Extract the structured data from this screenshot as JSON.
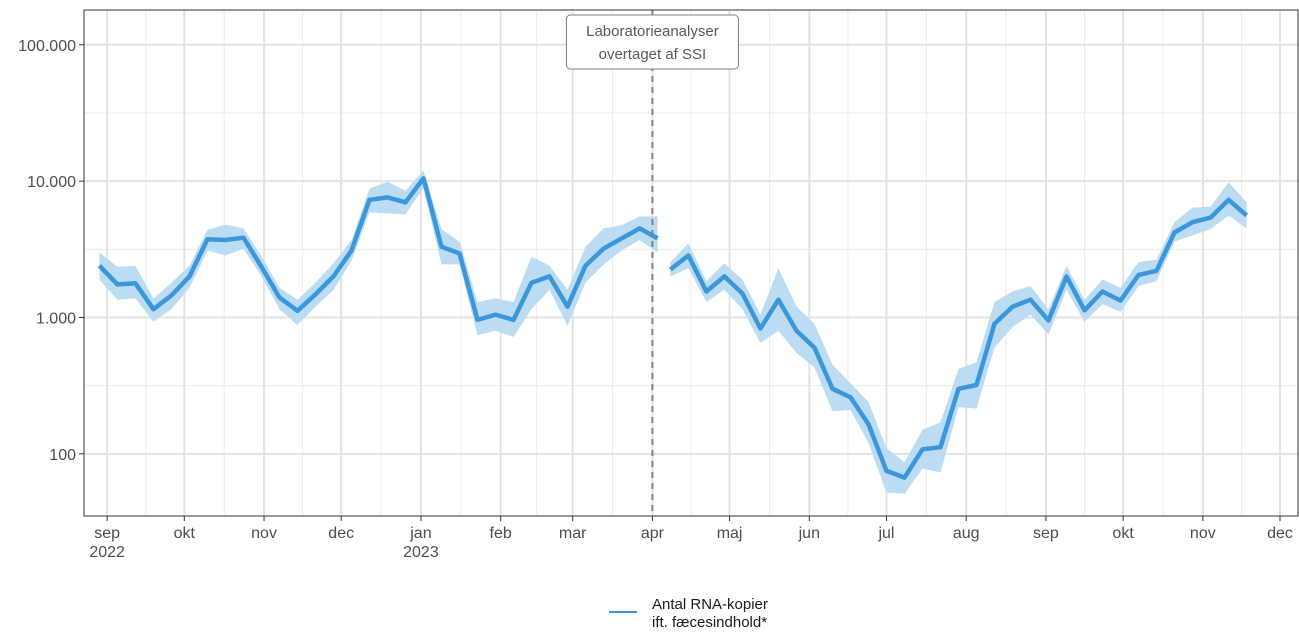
{
  "chart_data": {
    "type": "line",
    "title": "",
    "xlabel": "",
    "ylabel": "",
    "y_scale": "log10",
    "ylim": [
      35,
      180000
    ],
    "y_ticks": [
      {
        "value": 100,
        "label": "100"
      },
      {
        "value": 1000,
        "label": "1.000"
      },
      {
        "value": 10000,
        "label": "10.000"
      },
      {
        "value": 100000,
        "label": "100.000"
      }
    ],
    "xlim": [
      "2022-08-23",
      "2023-12-08"
    ],
    "x_ticks": [
      {
        "date": "2022-09-01",
        "label": "sep",
        "sublabel": "2022"
      },
      {
        "date": "2022-10-01",
        "label": "okt",
        "sublabel": ""
      },
      {
        "date": "2022-11-01",
        "label": "nov",
        "sublabel": ""
      },
      {
        "date": "2022-12-01",
        "label": "dec",
        "sublabel": ""
      },
      {
        "date": "2023-01-01",
        "label": "jan",
        "sublabel": "2023"
      },
      {
        "date": "2023-02-01",
        "label": "feb",
        "sublabel": ""
      },
      {
        "date": "2023-03-01",
        "label": "mar",
        "sublabel": ""
      },
      {
        "date": "2023-04-01",
        "label": "apr",
        "sublabel": ""
      },
      {
        "date": "2023-05-01",
        "label": "maj",
        "sublabel": ""
      },
      {
        "date": "2023-06-01",
        "label": "jun",
        "sublabel": ""
      },
      {
        "date": "2023-07-01",
        "label": "jul",
        "sublabel": ""
      },
      {
        "date": "2023-08-01",
        "label": "aug",
        "sublabel": ""
      },
      {
        "date": "2023-09-01",
        "label": "sep",
        "sublabel": ""
      },
      {
        "date": "2023-10-01",
        "label": "okt",
        "sublabel": ""
      },
      {
        "date": "2023-11-01",
        "label": "nov",
        "sublabel": ""
      },
      {
        "date": "2023-12-01",
        "label": "dec",
        "sublabel": ""
      }
    ],
    "grid": true,
    "legend_position": "bottom",
    "vline": {
      "date": "2023-04-01",
      "style": "dashed",
      "annotation": [
        "Laboratorieanalyser",
        "overtaget af SSI"
      ]
    },
    "series": [
      {
        "name": "Antal RNA-kopier\nift. fæcesindhold*",
        "legend_lines": [
          "Antal RNA-kopier",
          "ift. fæcesindhold*"
        ],
        "color": "#3a97db",
        "band_color": "#bcdcf3",
        "segments": [
          [
            {
              "date": "2022-08-29",
              "y": 2400,
              "lo": 1900,
              "hi": 3000
            },
            {
              "date": "2022-09-05",
              "y": 1750,
              "lo": 1350,
              "hi": 2350
            },
            {
              "date": "2022-09-12",
              "y": 1780,
              "lo": 1380,
              "hi": 2400
            },
            {
              "date": "2022-09-19",
              "y": 1150,
              "lo": 930,
              "hi": 1380
            },
            {
              "date": "2022-09-26",
              "y": 1450,
              "lo": 1150,
              "hi": 1800
            },
            {
              "date": "2022-10-03",
              "y": 2000,
              "lo": 1650,
              "hi": 2400
            },
            {
              "date": "2022-10-10",
              "y": 3750,
              "lo": 3100,
              "hi": 4400
            },
            {
              "date": "2022-10-17",
              "y": 3700,
              "lo": 2850,
              "hi": 4800
            },
            {
              "date": "2022-10-24",
              "y": 3850,
              "lo": 3200,
              "hi": 4500
            },
            {
              "date": "2022-10-31",
              "y": 2350,
              "lo": 2000,
              "hi": 2800
            },
            {
              "date": "2022-11-07",
              "y": 1400,
              "lo": 1150,
              "hi": 1650
            },
            {
              "date": "2022-11-14",
              "y": 1120,
              "lo": 880,
              "hi": 1350
            },
            {
              "date": "2022-11-21",
              "y": 1480,
              "lo": 1200,
              "hi": 1800
            },
            {
              "date": "2022-11-28",
              "y": 2000,
              "lo": 1600,
              "hi": 2500
            },
            {
              "date": "2022-12-05",
              "y": 3100,
              "lo": 2600,
              "hi": 3700
            },
            {
              "date": "2022-12-12",
              "y": 7300,
              "lo": 5900,
              "hi": 8800
            },
            {
              "date": "2022-12-19",
              "y": 7600,
              "lo": 5800,
              "hi": 9900
            },
            {
              "date": "2022-12-26",
              "y": 7000,
              "lo": 5700,
              "hi": 8500
            },
            {
              "date": "2023-01-02",
              "y": 10500,
              "lo": 8900,
              "hi": 12000
            },
            {
              "date": "2023-01-09",
              "y": 3300,
              "lo": 2450,
              "hi": 4450
            },
            {
              "date": "2023-01-16",
              "y": 2950,
              "lo": 2450,
              "hi": 3600
            },
            {
              "date": "2023-01-23",
              "y": 960,
              "lo": 740,
              "hi": 1300
            },
            {
              "date": "2023-01-30",
              "y": 1050,
              "lo": 800,
              "hi": 1380
            },
            {
              "date": "2023-02-06",
              "y": 960,
              "lo": 720,
              "hi": 1300
            },
            {
              "date": "2023-02-13",
              "y": 1800,
              "lo": 1150,
              "hi": 2800
            },
            {
              "date": "2023-02-20",
              "y": 2000,
              "lo": 1600,
              "hi": 2400
            },
            {
              "date": "2023-02-27",
              "y": 1200,
              "lo": 870,
              "hi": 1600
            },
            {
              "date": "2023-03-06",
              "y": 2400,
              "lo": 1800,
              "hi": 3300
            },
            {
              "date": "2023-03-13",
              "y": 3200,
              "lo": 2450,
              "hi": 4500
            },
            {
              "date": "2023-03-20",
              "y": 3800,
              "lo": 3100,
              "hi": 4750
            },
            {
              "date": "2023-03-27",
              "y": 4500,
              "lo": 3700,
              "hi": 5500
            },
            {
              "date": "2023-04-03",
              "y": 3800,
              "lo": 3000,
              "hi": 5500
            }
          ],
          [
            {
              "date": "2023-04-08",
              "y": 2250,
              "lo": 2000,
              "hi": 2550
            },
            {
              "date": "2023-04-15",
              "y": 2850,
              "lo": 2300,
              "hi": 3500
            },
            {
              "date": "2023-04-22",
              "y": 1550,
              "lo": 1300,
              "hi": 1850
            },
            {
              "date": "2023-04-29",
              "y": 2000,
              "lo": 1600,
              "hi": 2500
            },
            {
              "date": "2023-05-06",
              "y": 1500,
              "lo": 1150,
              "hi": 1900
            },
            {
              "date": "2023-05-13",
              "y": 830,
              "lo": 650,
              "hi": 1050
            },
            {
              "date": "2023-05-20",
              "y": 1350,
              "lo": 800,
              "hi": 2300
            },
            {
              "date": "2023-05-27",
              "y": 800,
              "lo": 550,
              "hi": 1200
            },
            {
              "date": "2023-06-03",
              "y": 600,
              "lo": 430,
              "hi": 900
            },
            {
              "date": "2023-06-10",
              "y": 300,
              "lo": 205,
              "hi": 450
            },
            {
              "date": "2023-06-17",
              "y": 260,
              "lo": 210,
              "hi": 330
            },
            {
              "date": "2023-06-24",
              "y": 165,
              "lo": 120,
              "hi": 240
            },
            {
              "date": "2023-07-01",
              "y": 75,
              "lo": 52,
              "hi": 110
            },
            {
              "date": "2023-07-08",
              "y": 67,
              "lo": 51,
              "hi": 87
            },
            {
              "date": "2023-07-15",
              "y": 108,
              "lo": 78,
              "hi": 150
            },
            {
              "date": "2023-07-22",
              "y": 112,
              "lo": 73,
              "hi": 170
            },
            {
              "date": "2023-07-29",
              "y": 300,
              "lo": 220,
              "hi": 420
            },
            {
              "date": "2023-08-05",
              "y": 320,
              "lo": 215,
              "hi": 470
            },
            {
              "date": "2023-08-12",
              "y": 900,
              "lo": 600,
              "hi": 1300
            },
            {
              "date": "2023-08-19",
              "y": 1200,
              "lo": 850,
              "hi": 1550
            },
            {
              "date": "2023-08-26",
              "y": 1350,
              "lo": 1050,
              "hi": 1700
            },
            {
              "date": "2023-09-02",
              "y": 950,
              "lo": 750,
              "hi": 1150
            },
            {
              "date": "2023-09-09",
              "y": 2000,
              "lo": 1600,
              "hi": 2400
            },
            {
              "date": "2023-09-16",
              "y": 1130,
              "lo": 930,
              "hi": 1350
            },
            {
              "date": "2023-09-23",
              "y": 1550,
              "lo": 1250,
              "hi": 1900
            },
            {
              "date": "2023-09-30",
              "y": 1330,
              "lo": 1100,
              "hi": 1650
            },
            {
              "date": "2023-10-07",
              "y": 2050,
              "lo": 1700,
              "hi": 2550
            },
            {
              "date": "2023-10-14",
              "y": 2200,
              "lo": 1850,
              "hi": 2650
            },
            {
              "date": "2023-10-21",
              "y": 4200,
              "lo": 3600,
              "hi": 5000
            },
            {
              "date": "2023-10-28",
              "y": 5000,
              "lo": 4000,
              "hi": 6400
            },
            {
              "date": "2023-11-04",
              "y": 5400,
              "lo": 4450,
              "hi": 6500
            },
            {
              "date": "2023-11-11",
              "y": 7300,
              "lo": 5600,
              "hi": 9800
            },
            {
              "date": "2023-11-18",
              "y": 5600,
              "lo": 4500,
              "hi": 7000
            }
          ]
        ]
      }
    ]
  }
}
